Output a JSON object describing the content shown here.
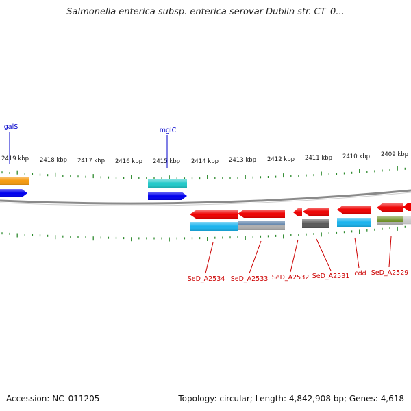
{
  "title": "Salmonella enterica subsp. enterica serovar Dublin str. CT_0...",
  "footer": {
    "accession": "Accession: NC_011205",
    "summary": "Topology: circular; Length: 4,842,908 bp; Genes: 4,618"
  },
  "scale": {
    "ticks": [
      {
        "label": "2419 kbp"
      },
      {
        "label": "2418 kbp"
      },
      {
        "label": "2417 kbp"
      },
      {
        "label": "2416 kbp"
      },
      {
        "label": "2415 kbp"
      },
      {
        "label": "2414 kbp"
      },
      {
        "label": "2413 kbp"
      },
      {
        "label": "2412 kbp"
      },
      {
        "label": "2411 kbp"
      },
      {
        "label": "2410 kbp"
      },
      {
        "label": "2409 kbp"
      }
    ]
  },
  "gene_labels": {
    "top": [
      {
        "name": "galS",
        "color": "#0000cc"
      },
      {
        "name": "mglC",
        "color": "#0000cc"
      }
    ],
    "bottom": [
      {
        "name": "SeD_A2534",
        "color": "#cc0000"
      },
      {
        "name": "SeD_A2533",
        "color": "#cc0000"
      },
      {
        "name": "SeD_A2532",
        "color": "#cc0000"
      },
      {
        "name": "SeD_A2531",
        "color": "#cc0000"
      },
      {
        "name": "cdd",
        "color": "#cc0000"
      },
      {
        "name": "SeD_A2529",
        "color": "#cc0000"
      }
    ]
  },
  "colors": {
    "backbone": "#8a8a8a",
    "tick": "#2e8b2e",
    "gene_forward": "#0000ee",
    "gene_reverse": "#ee0000",
    "orange": "#f59a10",
    "cyan": "#1fc8c8",
    "sky": "#19b4ee",
    "grey": "#5a5a5a",
    "olive": "#6b8e23",
    "steel": "#5a7fa8",
    "silver": "#b0b0b0"
  }
}
